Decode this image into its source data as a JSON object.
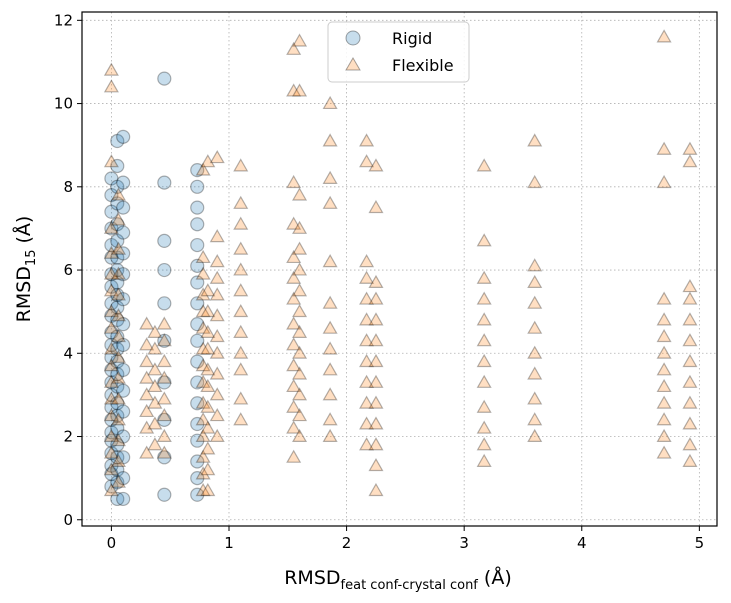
{
  "chart_data": {
    "type": "scatter",
    "title": "",
    "xlabel": {
      "main": "RMSD",
      "subscript": "feat conf-crystal conf",
      "unit": " (Å)"
    },
    "ylabel": {
      "main": "RMSD",
      "subscript": "15",
      "unit": " (Å)"
    },
    "xlim": [
      -0.25,
      5.15
    ],
    "ylim": [
      -0.15,
      12.2
    ],
    "xticks": [
      0,
      1,
      2,
      3,
      4,
      5
    ],
    "yticks": [
      0,
      2,
      4,
      6,
      8,
      10,
      12
    ],
    "grid": true,
    "legend_position": "top-center",
    "series": [
      {
        "name": "Rigid",
        "marker": "circle",
        "color": "#1f77b4",
        "columns": [
          {
            "x": 0.0,
            "ys": [
              0.8,
              1.1,
              1.3,
              1.6,
              1.9,
              2.1,
              2.4,
              2.7,
              3.0,
              3.3,
              3.6,
              3.9,
              4.2,
              4.5,
              4.9,
              5.2,
              5.6,
              5.9,
              6.3,
              6.6,
              7.0,
              7.4,
              7.8,
              8.2
            ]
          },
          {
            "x": 0.05,
            "ys": [
              0.5,
              0.9,
              1.2,
              1.5,
              1.8,
              2.2,
              2.5,
              2.8,
              3.2,
              3.5,
              3.8,
              4.1,
              4.4,
              4.8,
              5.1,
              5.4,
              5.7,
              6.0,
              6.3,
              6.7,
              7.1,
              7.6,
              8.0,
              8.5,
              9.1
            ]
          },
          {
            "x": 0.1,
            "ys": [
              0.5,
              1.0,
              1.5,
              2.0,
              2.6,
              3.1,
              3.6,
              4.2,
              4.7,
              5.3,
              5.9,
              6.4,
              6.9,
              7.5,
              8.1,
              9.2
            ]
          },
          {
            "x": 0.45,
            "ys": [
              0.6,
              1.5,
              2.4,
              3.3,
              4.3,
              5.2,
              6.0,
              6.7,
              8.1,
              10.6
            ]
          },
          {
            "x": 0.73,
            "ys": [
              0.6,
              1.0,
              1.4,
              1.9,
              2.3,
              2.8,
              3.3,
              3.8,
              4.3,
              4.7,
              5.2,
              5.7,
              6.1,
              6.6,
              7.1,
              7.5,
              8.0,
              8.4
            ]
          }
        ]
      },
      {
        "name": "Flexible",
        "marker": "triangle",
        "color": "#ff7f0e",
        "columns": [
          {
            "x": 0.0,
            "ys": [
              0.7,
              1.2,
              1.6,
              2.0,
              2.5,
              2.9,
              3.3,
              3.7,
              4.1,
              4.6,
              5.0,
              5.5,
              5.9,
              6.4,
              7.0,
              8.6,
              10.4,
              10.8
            ]
          },
          {
            "x": 0.06,
            "ys": [
              0.9,
              1.4,
              1.9,
              2.4,
              2.9,
              3.4,
              3.9,
              4.4,
              4.9,
              5.4,
              5.9,
              6.5,
              7.2,
              7.8
            ]
          },
          {
            "x": 0.3,
            "ys": [
              1.6,
              2.2,
              2.6,
              3.0,
              3.4,
              3.8,
              4.2,
              4.7
            ]
          },
          {
            "x": 0.37,
            "ys": [
              1.8,
              2.3,
              2.8,
              3.2,
              3.6,
              4.1,
              4.5
            ]
          },
          {
            "x": 0.45,
            "ys": [
              1.6,
              2.0,
              2.5,
              2.9,
              3.4,
              3.8,
              4.3,
              4.7
            ]
          },
          {
            "x": 0.78,
            "ys": [
              0.7,
              1.1,
              1.5,
              2.0,
              2.4,
              2.8,
              3.3,
              3.7,
              4.1,
              4.6,
              5.0,
              5.4,
              5.9,
              6.3,
              8.4
            ]
          },
          {
            "x": 0.82,
            "ys": [
              0.7,
              1.2,
              1.7,
              2.2,
              2.7,
              3.2,
              3.6,
              4.1,
              4.5,
              5.0,
              5.5,
              8.6
            ]
          },
          {
            "x": 0.9,
            "ys": [
              2.0,
              2.5,
              3.0,
              3.5,
              4.0,
              4.4,
              4.9,
              5.4,
              5.8,
              6.2,
              6.8,
              8.7
            ]
          },
          {
            "x": 1.1,
            "ys": [
              2.4,
              2.9,
              3.6,
              4.0,
              4.5,
              5.0,
              5.5,
              6.0,
              6.5,
              7.1,
              7.6,
              8.5
            ]
          },
          {
            "x": 1.55,
            "ys": [
              1.5,
              2.2,
              2.7,
              3.2,
              3.7,
              4.2,
              4.7,
              5.3,
              5.8,
              6.3,
              7.1,
              8.1,
              10.3,
              11.3
            ]
          },
          {
            "x": 1.6,
            "ys": [
              2.0,
              2.5,
              3.0,
              3.5,
              4.0,
              4.5,
              5.0,
              5.5,
              6.0,
              6.5,
              7.0,
              7.8,
              10.3,
              11.5
            ]
          },
          {
            "x": 1.86,
            "ys": [
              2.0,
              2.4,
              3.0,
              3.6,
              4.1,
              4.6,
              5.2,
              6.2,
              7.6,
              8.2,
              9.1,
              10.0
            ]
          },
          {
            "x": 2.17,
            "ys": [
              1.8,
              2.3,
              2.8,
              3.3,
              3.8,
              4.3,
              4.8,
              5.3,
              5.8,
              6.2,
              8.6,
              9.1
            ]
          },
          {
            "x": 2.25,
            "ys": [
              0.7,
              1.3,
              1.8,
              2.3,
              2.8,
              3.3,
              3.8,
              4.3,
              4.8,
              5.3,
              5.7,
              7.5,
              8.5
            ]
          },
          {
            "x": 3.17,
            "ys": [
              1.4,
              1.8,
              2.2,
              2.7,
              3.3,
              3.8,
              4.3,
              4.8,
              5.3,
              5.8,
              6.7,
              8.5
            ]
          },
          {
            "x": 3.6,
            "ys": [
              2.0,
              2.4,
              2.9,
              3.5,
              4.0,
              4.6,
              5.2,
              5.7,
              6.1,
              8.1,
              9.1
            ]
          },
          {
            "x": 4.7,
            "ys": [
              1.6,
              2.0,
              2.4,
              2.8,
              3.2,
              3.6,
              4.0,
              4.4,
              4.8,
              5.3,
              8.1,
              8.9,
              11.6
            ]
          },
          {
            "x": 4.92,
            "ys": [
              1.4,
              1.8,
              2.3,
              2.8,
              3.3,
              3.8,
              4.3,
              4.8,
              5.3,
              5.6,
              8.6,
              8.9
            ]
          }
        ]
      }
    ]
  }
}
